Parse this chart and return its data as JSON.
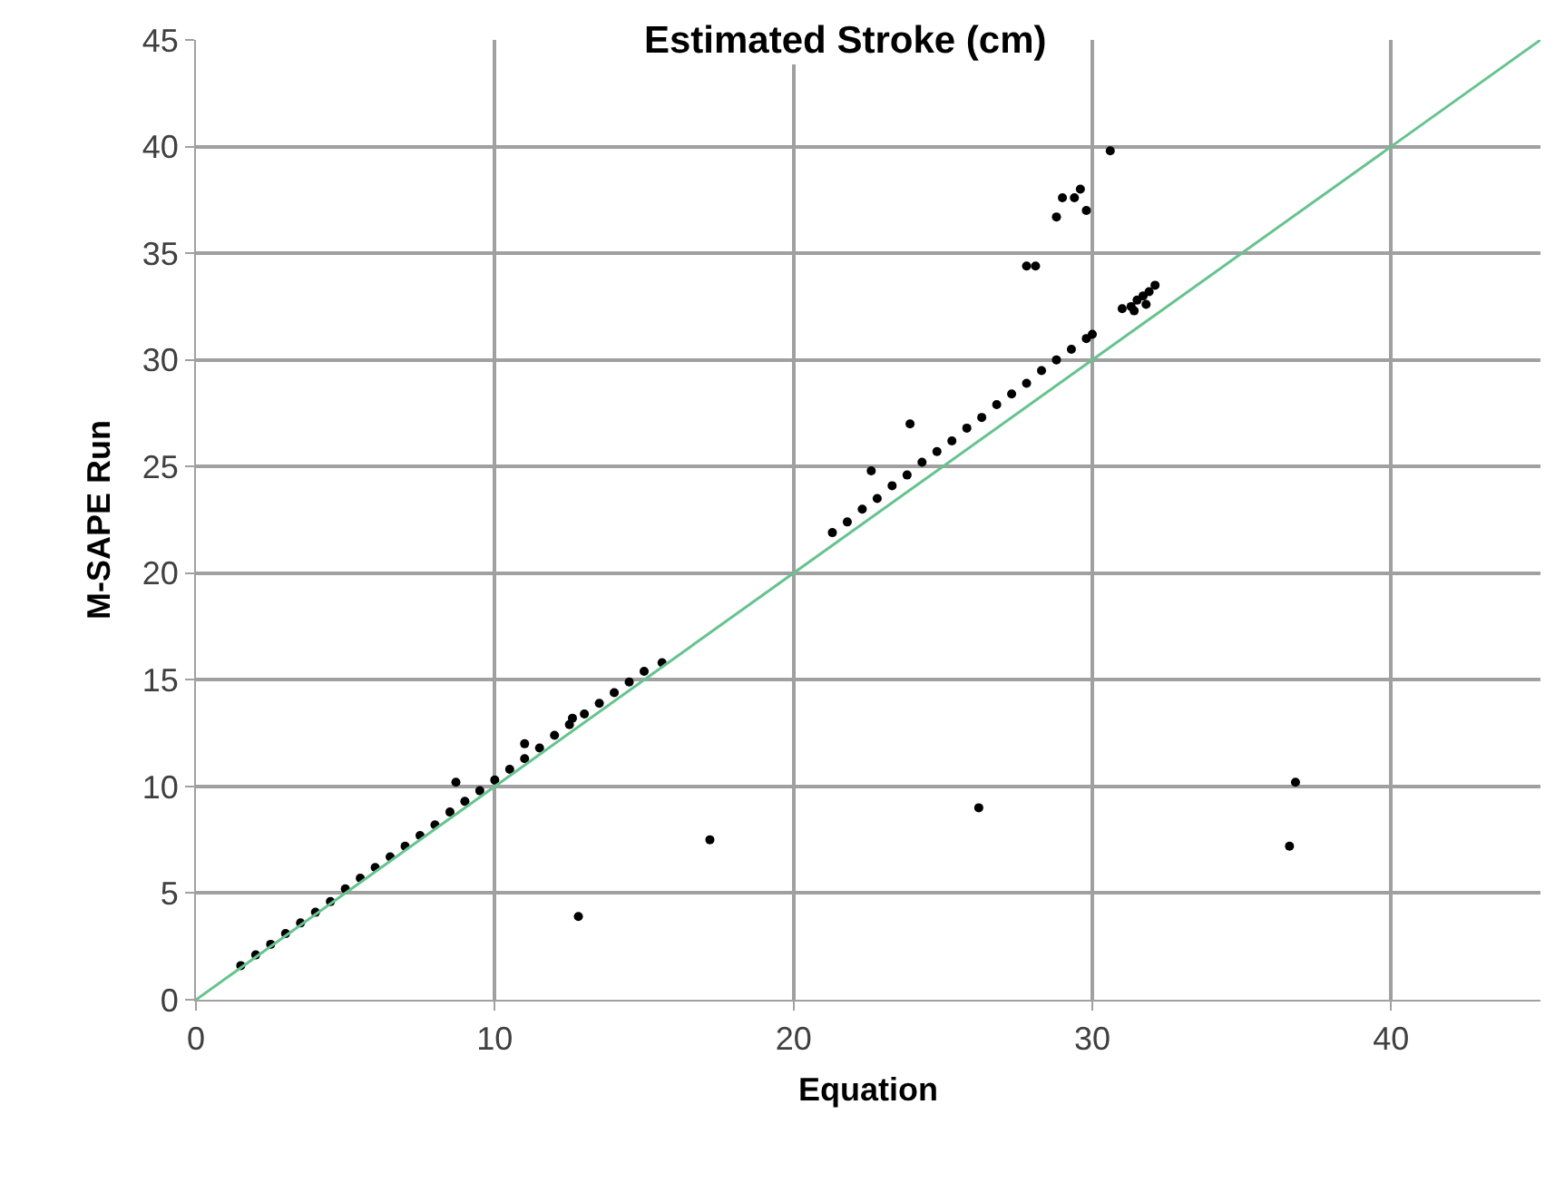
{
  "chart_data": {
    "type": "scatter",
    "title": "Estimated Stroke (cm)",
    "xlabel": "Equation",
    "ylabel": "M-SAPE Run",
    "xlim": [
      0,
      45
    ],
    "xticks": [
      0,
      10,
      20,
      30,
      40
    ],
    "ylim": [
      0,
      45
    ],
    "yticks": [
      0,
      5,
      10,
      15,
      20,
      25,
      30,
      35,
      40,
      45
    ],
    "grid": true,
    "series": [
      {
        "marker": "circle",
        "color": "#000000",
        "x": [
          1.5,
          2,
          2.5,
          3,
          3.5,
          4,
          4.5,
          5,
          5.5,
          6,
          6.5,
          7,
          7.5,
          8,
          8.5,
          9,
          9.5,
          10,
          10.5,
          11,
          11.5,
          12,
          12.5,
          13,
          13.5,
          14,
          14.5,
          15,
          21.3,
          21.8,
          22.3,
          22.8,
          23.3,
          23.8,
          24.3,
          24.8,
          25.3,
          25.8,
          26.3,
          26.8,
          27.3,
          27.8,
          28.3,
          28.8,
          29.3,
          29.8,
          30.0,
          31.0,
          31.3,
          31.5,
          31.7,
          31.9,
          32.1,
          31.4,
          31.8,
          17.2,
          12.8,
          26.2,
          36.6,
          36.8,
          8.7,
          11.0,
          12.6,
          15.6,
          22.6,
          23.9,
          27.8,
          28.1,
          28.8,
          29.0,
          29.4,
          29.6,
          29.8,
          30.6
        ],
        "values": [
          1.6,
          2.1,
          2.6,
          3.1,
          3.6,
          4.1,
          4.6,
          5.2,
          5.7,
          6.2,
          6.7,
          7.2,
          7.7,
          8.2,
          8.8,
          9.3,
          9.8,
          10.3,
          10.8,
          11.3,
          11.8,
          12.4,
          12.9,
          13.4,
          13.9,
          14.4,
          14.9,
          15.4,
          21.9,
          22.4,
          23.0,
          23.5,
          24.1,
          24.6,
          25.2,
          25.7,
          26.2,
          26.8,
          27.3,
          27.9,
          28.4,
          28.9,
          29.5,
          30.0,
          30.5,
          31.0,
          31.2,
          32.4,
          32.5,
          32.8,
          33.0,
          33.2,
          33.5,
          32.3,
          32.6,
          7.5,
          3.9,
          9.0,
          7.2,
          10.2,
          10.2,
          12.0,
          13.2,
          15.8,
          24.8,
          27.0,
          34.4,
          34.4,
          36.7,
          37.6,
          37.6,
          38.0,
          37.0,
          39.8
        ]
      },
      {
        "type": "line",
        "marker": "none",
        "color": "#66c38e",
        "x": [
          0,
          45
        ],
        "values": [
          0,
          45
        ]
      }
    ]
  }
}
